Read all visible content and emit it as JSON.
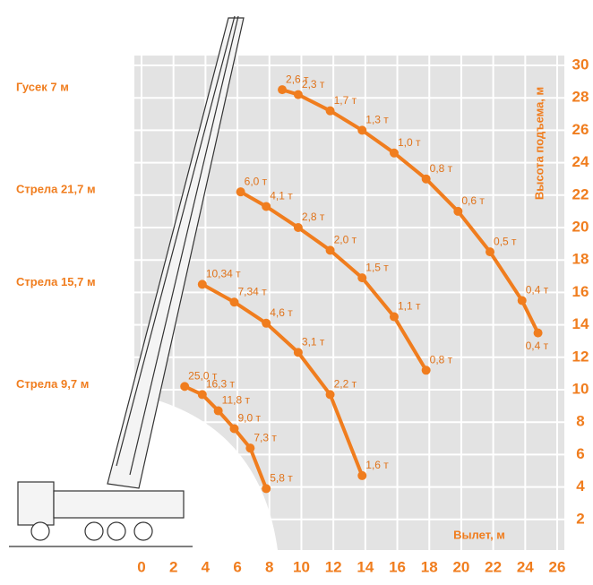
{
  "chart_data": {
    "type": "line",
    "x_label": "Вылет, м",
    "y_label": "Высота подъема, м",
    "xlim": [
      0,
      26
    ],
    "xticks": [
      0,
      2,
      4,
      6,
      8,
      10,
      12,
      14,
      16,
      18,
      20,
      22,
      24,
      26
    ],
    "ylim": [
      0,
      30
    ],
    "yticks": [
      2,
      4,
      6,
      8,
      10,
      12,
      14,
      16,
      18,
      20,
      22,
      24,
      26,
      28,
      30
    ],
    "grid": true,
    "series": [
      {
        "name": "Гусек 7 м",
        "color": "#f07d1e",
        "x": [
          8.8,
          9.8,
          11.8,
          13.8,
          15.8,
          17.8,
          19.8,
          21.8,
          23.8,
          24.8
        ],
        "values": [
          28.5,
          28.2,
          27.2,
          26.0,
          24.6,
          23.0,
          21.0,
          18.5,
          15.5,
          13.5
        ],
        "value_labels": [
          "2,6 т",
          "2,3 т",
          "1,7 т",
          "1,3 т",
          "1,0 т",
          "0,8 т",
          "0,6 т",
          "0,5 т",
          "0,4 т",
          "0,4 т"
        ]
      },
      {
        "name": "Стрела 21,7 м",
        "color": "#f07d1e",
        "x": [
          6.2,
          7.8,
          9.8,
          11.8,
          13.8,
          15.8,
          17.8
        ],
        "values": [
          22.2,
          21.3,
          20.0,
          18.6,
          16.9,
          14.5,
          11.2
        ],
        "value_labels": [
          "6,0 т",
          "4,1 т",
          "2,8 т",
          "2,0 т",
          "1,5 т",
          "1,1 т",
          "0,8 т"
        ]
      },
      {
        "name": "Стрела 15,7 м",
        "color": "#f07d1e",
        "x": [
          3.8,
          5.8,
          7.8,
          9.8,
          11.8,
          13.8
        ],
        "values": [
          16.5,
          15.4,
          14.1,
          12.3,
          9.7,
          4.7
        ],
        "value_labels": [
          "10,34 т",
          "7,34 т",
          "4,6 т",
          "3,1 т",
          "2,2 т",
          "1,6 т"
        ]
      },
      {
        "name": "Стрела 9,7 м",
        "color": "#f07d1e",
        "x": [
          2.7,
          3.8,
          4.8,
          5.8,
          6.8,
          7.8
        ],
        "values": [
          10.2,
          9.7,
          8.7,
          7.6,
          6.4,
          3.9
        ],
        "value_labels": [
          "25,0 т",
          "16,3 т",
          "11,8 т",
          "9,0 т",
          "7,3 т",
          "5,8 т"
        ]
      }
    ]
  }
}
